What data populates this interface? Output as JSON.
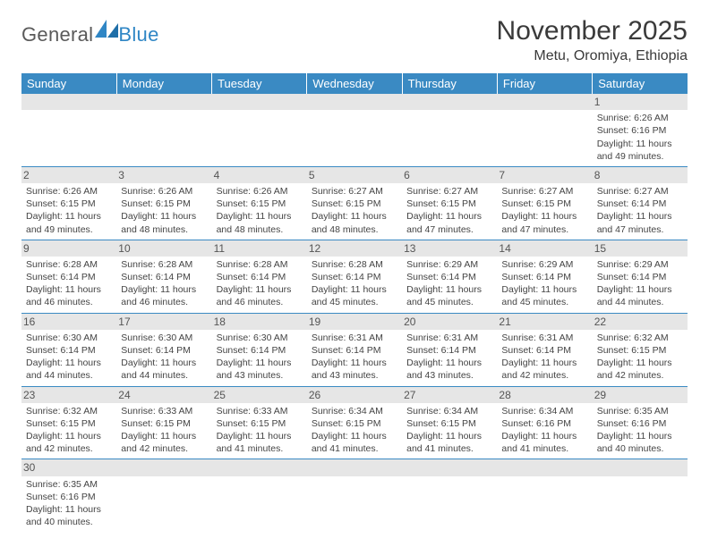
{
  "logo": {
    "text1": "General",
    "text2": "Blue"
  },
  "title": "November 2025",
  "subtitle": "Metu, Oromiya, Ethiopia",
  "colors": {
    "header_bg": "#3a8ac3",
    "header_text": "#ffffff",
    "daynum_bg": "#e6e6e6",
    "cell_border": "#3a8ac3",
    "logo_gray": "#5a5a5a",
    "logo_blue": "#2f86c5"
  },
  "weekdays": [
    "Sunday",
    "Monday",
    "Tuesday",
    "Wednesday",
    "Thursday",
    "Friday",
    "Saturday"
  ],
  "weeks": [
    [
      {
        "empty": true
      },
      {
        "empty": true
      },
      {
        "empty": true
      },
      {
        "empty": true
      },
      {
        "empty": true
      },
      {
        "empty": true
      },
      {
        "d": "1",
        "sr": "6:26 AM",
        "ss": "6:16 PM",
        "dl": "11 hours and 49 minutes."
      }
    ],
    [
      {
        "d": "2",
        "sr": "6:26 AM",
        "ss": "6:15 PM",
        "dl": "11 hours and 49 minutes."
      },
      {
        "d": "3",
        "sr": "6:26 AM",
        "ss": "6:15 PM",
        "dl": "11 hours and 48 minutes."
      },
      {
        "d": "4",
        "sr": "6:26 AM",
        "ss": "6:15 PM",
        "dl": "11 hours and 48 minutes."
      },
      {
        "d": "5",
        "sr": "6:27 AM",
        "ss": "6:15 PM",
        "dl": "11 hours and 48 minutes."
      },
      {
        "d": "6",
        "sr": "6:27 AM",
        "ss": "6:15 PM",
        "dl": "11 hours and 47 minutes."
      },
      {
        "d": "7",
        "sr": "6:27 AM",
        "ss": "6:15 PM",
        "dl": "11 hours and 47 minutes."
      },
      {
        "d": "8",
        "sr": "6:27 AM",
        "ss": "6:14 PM",
        "dl": "11 hours and 47 minutes."
      }
    ],
    [
      {
        "d": "9",
        "sr": "6:28 AM",
        "ss": "6:14 PM",
        "dl": "11 hours and 46 minutes."
      },
      {
        "d": "10",
        "sr": "6:28 AM",
        "ss": "6:14 PM",
        "dl": "11 hours and 46 minutes."
      },
      {
        "d": "11",
        "sr": "6:28 AM",
        "ss": "6:14 PM",
        "dl": "11 hours and 46 minutes."
      },
      {
        "d": "12",
        "sr": "6:28 AM",
        "ss": "6:14 PM",
        "dl": "11 hours and 45 minutes."
      },
      {
        "d": "13",
        "sr": "6:29 AM",
        "ss": "6:14 PM",
        "dl": "11 hours and 45 minutes."
      },
      {
        "d": "14",
        "sr": "6:29 AM",
        "ss": "6:14 PM",
        "dl": "11 hours and 45 minutes."
      },
      {
        "d": "15",
        "sr": "6:29 AM",
        "ss": "6:14 PM",
        "dl": "11 hours and 44 minutes."
      }
    ],
    [
      {
        "d": "16",
        "sr": "6:30 AM",
        "ss": "6:14 PM",
        "dl": "11 hours and 44 minutes."
      },
      {
        "d": "17",
        "sr": "6:30 AM",
        "ss": "6:14 PM",
        "dl": "11 hours and 44 minutes."
      },
      {
        "d": "18",
        "sr": "6:30 AM",
        "ss": "6:14 PM",
        "dl": "11 hours and 43 minutes."
      },
      {
        "d": "19",
        "sr": "6:31 AM",
        "ss": "6:14 PM",
        "dl": "11 hours and 43 minutes."
      },
      {
        "d": "20",
        "sr": "6:31 AM",
        "ss": "6:14 PM",
        "dl": "11 hours and 43 minutes."
      },
      {
        "d": "21",
        "sr": "6:31 AM",
        "ss": "6:14 PM",
        "dl": "11 hours and 42 minutes."
      },
      {
        "d": "22",
        "sr": "6:32 AM",
        "ss": "6:15 PM",
        "dl": "11 hours and 42 minutes."
      }
    ],
    [
      {
        "d": "23",
        "sr": "6:32 AM",
        "ss": "6:15 PM",
        "dl": "11 hours and 42 minutes."
      },
      {
        "d": "24",
        "sr": "6:33 AM",
        "ss": "6:15 PM",
        "dl": "11 hours and 42 minutes."
      },
      {
        "d": "25",
        "sr": "6:33 AM",
        "ss": "6:15 PM",
        "dl": "11 hours and 41 minutes."
      },
      {
        "d": "26",
        "sr": "6:34 AM",
        "ss": "6:15 PM",
        "dl": "11 hours and 41 minutes."
      },
      {
        "d": "27",
        "sr": "6:34 AM",
        "ss": "6:15 PM",
        "dl": "11 hours and 41 minutes."
      },
      {
        "d": "28",
        "sr": "6:34 AM",
        "ss": "6:16 PM",
        "dl": "11 hours and 41 minutes."
      },
      {
        "d": "29",
        "sr": "6:35 AM",
        "ss": "6:16 PM",
        "dl": "11 hours and 40 minutes."
      }
    ],
    [
      {
        "d": "30",
        "sr": "6:35 AM",
        "ss": "6:16 PM",
        "dl": "11 hours and 40 minutes."
      },
      {
        "empty": true
      },
      {
        "empty": true
      },
      {
        "empty": true
      },
      {
        "empty": true
      },
      {
        "empty": true
      },
      {
        "empty": true
      }
    ]
  ],
  "labels": {
    "sunrise": "Sunrise:",
    "sunset": "Sunset:",
    "daylight": "Daylight:"
  }
}
